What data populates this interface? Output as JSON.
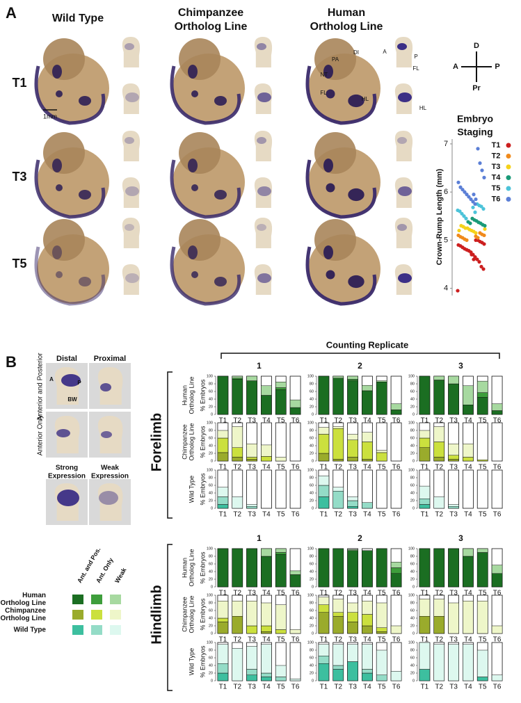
{
  "panel_a": {
    "label": "A",
    "columns": [
      [
        "Wild Type"
      ],
      [
        "Chimpanzee",
        "Ortholog Line"
      ],
      [
        "Human",
        "Ortholog Line"
      ]
    ],
    "rows": [
      "T1",
      "T3",
      "T5"
    ],
    "scale_bar": "1mm",
    "annotations": [
      "PA",
      "DI",
      "NT",
      "FL",
      "HL",
      "A",
      "P",
      "FL",
      "HL"
    ],
    "compass": [
      "D",
      "A",
      "P",
      "Pr"
    ]
  },
  "chart_data": {
    "type": "scatter",
    "title": [
      "Embryo",
      "Staging"
    ],
    "ylabel": "Crown-Rump Length (mm)",
    "ylim": [
      3.85,
      7.1
    ],
    "yticks": [
      4,
      5,
      6,
      7
    ],
    "series": [
      {
        "name": "T1",
        "color": "#cc1f1f",
        "values": [
          3.95,
          4.4,
          4.45,
          4.55,
          4.6,
          4.65,
          4.7,
          4.75,
          4.78,
          4.8,
          4.82,
          4.85,
          4.88,
          4.9,
          4.92,
          4.95,
          4.97,
          5.0,
          5.0,
          4.6,
          4.7
        ]
      },
      {
        "name": "T2",
        "color": "#f08a1c",
        "values": [
          5.0,
          5.02,
          5.05,
          5.07,
          5.1,
          5.1,
          5.12,
          5.15,
          5.05,
          5.08
        ]
      },
      {
        "name": "T3",
        "color": "#f5d21a",
        "values": [
          5.15,
          5.18,
          5.2,
          5.22,
          5.25,
          5.25,
          5.28,
          5.3,
          5.2,
          5.23
        ]
      },
      {
        "name": "T4",
        "color": "#1a9a78",
        "values": [
          5.3,
          5.32,
          5.35,
          5.37,
          5.4,
          5.42,
          5.45,
          5.35,
          5.38
        ]
      },
      {
        "name": "T5",
        "color": "#4cc3d9",
        "values": [
          5.45,
          5.5,
          5.55,
          5.6,
          5.62,
          5.65,
          5.7,
          5.72,
          5.75,
          5.58,
          5.68
        ]
      },
      {
        "name": "T6",
        "color": "#5b7fd6",
        "values": [
          5.75,
          5.8,
          5.85,
          5.9,
          5.95,
          6.0,
          6.05,
          6.1,
          6.2,
          6.3,
          6.45,
          6.6,
          6.9,
          5.85,
          5.95
        ]
      }
    ]
  },
  "panel_b": {
    "label": "B",
    "examples": {
      "columns": [
        "Distal",
        "Proximal"
      ],
      "rows": [
        "Anterior and Posterior",
        "Anterior Only"
      ],
      "markers": [
        "A",
        "P",
        "BW"
      ],
      "expression": [
        [
          "Strong",
          "Expression"
        ],
        [
          "Weak",
          "Expression"
        ]
      ]
    },
    "legend": {
      "columns": [
        "Ant. and Pos.",
        "Ant. Only",
        "Weak"
      ],
      "rows": [
        [
          "Human",
          "Ortholog Line"
        ],
        [
          "Chimpanzee",
          "Ortholog Line"
        ],
        [
          "Wild Type"
        ]
      ]
    },
    "counts": {
      "type": "stacked_bar",
      "title": "Counting Replicate",
      "replicates": [
        "1",
        "2",
        "3"
      ],
      "categories": [
        "T1",
        "T2",
        "T3",
        "T4",
        "T5",
        "T6"
      ],
      "ylabel": "% Embryos",
      "ylim": [
        0,
        100
      ],
      "yticks": [
        0,
        20,
        40,
        60,
        80,
        100
      ],
      "lines": [
        {
          "name": [
            "Human",
            "Ortholog Line"
          ],
          "colors": [
            "#1b6e22",
            "#3e9e3c",
            "#a7d9a0"
          ]
        },
        {
          "name": [
            "Chimpanzee",
            "Ortholog Line"
          ],
          "colors": [
            "#9aab2c",
            "#cbe03e",
            "#eef6c9"
          ]
        },
        {
          "name": [
            "Wild Type"
          ],
          "colors": [
            "#3dbf9f",
            "#94dcc7",
            "#ddf8ef"
          ]
        }
      ],
      "blocks": [
        {
          "name": "Forelimb",
          "data": [
            [
              [
                [
                  100,
                  92,
                  88,
                  50,
                  65,
                  18
                ],
                [
                  0,
                  3,
                  0,
                  0,
                  5,
                  0
                ],
                [
                  0,
                  5,
                  12,
                  25,
                  15,
                  20
                ]
              ],
              [
                [
                  100,
                  95,
                  88,
                  62,
                  85,
                  12
                ],
                [
                  0,
                  0,
                  4,
                  0,
                  0,
                  0
                ],
                [
                  0,
                  5,
                  8,
                  14,
                  3,
                  16
                ]
              ],
              [
                [
                  100,
                  90,
                  80,
                  25,
                  45,
                  10
                ],
                [
                  0,
                  0,
                  0,
                  0,
                  12,
                  0
                ],
                [
                  0,
                  10,
                  20,
                  50,
                  30,
                  18
                ]
              ]
            ],
            [
              [
                [
                  22,
                  10,
                  5,
                  0,
                  0,
                  0
                ],
                [
                  38,
                  25,
                  5,
                  12,
                  0,
                  0
                ],
                [
                  20,
                  55,
                  35,
                  30,
                  10,
                  0
                ]
              ],
              [
                [
                  20,
                  5,
                  10,
                  5,
                  0,
                  0
                ],
                [
                  50,
                  80,
                  45,
                  45,
                  22,
                  0
                ],
                [
                  18,
                  5,
                  15,
                  25,
                  6,
                  0
                ]
              ],
              [
                [
                  35,
                  10,
                  5,
                  0,
                  0,
                  0
                ],
                [
                  25,
                  40,
                  10,
                  10,
                  3,
                  0
                ],
                [
                  20,
                  40,
                  30,
                  35,
                  0,
                  0
                ]
              ]
            ],
            [
              [
                [
                  10,
                  0,
                  0,
                  0,
                  0,
                  0
                ],
                [
                  20,
                  0,
                  5,
                  0,
                  0,
                  0
                ],
                [
                  25,
                  30,
                  5,
                  0,
                  0,
                  0
                ]
              ],
              [
                [
                  30,
                  0,
                  5,
                  0,
                  0,
                  0
                ],
                [
                  30,
                  45,
                  15,
                  15,
                  0,
                  0
                ],
                [
                  25,
                  10,
                  10,
                  0,
                  0,
                  0
                ]
              ],
              [
                [
                  10,
                  0,
                  0,
                  0,
                  0,
                  0
                ],
                [
                  15,
                  0,
                  5,
                  0,
                  0,
                  0
                ],
                [
                  33,
                  30,
                  5,
                  0,
                  0,
                  0
                ]
              ]
            ]
          ]
        },
        {
          "name": "Hindlimb",
          "data": [
            [
              [
                [
                  100,
                  100,
                  100,
                  80,
                  85,
                  32
                ],
                [
                  0,
                  0,
                  0,
                  0,
                  5,
                  0
                ],
                [
                  0,
                  0,
                  0,
                  20,
                  10,
                  10
                ]
              ],
              [
                [
                  100,
                  100,
                  95,
                  95,
                  100,
                  35
                ],
                [
                  0,
                  0,
                  0,
                  0,
                  0,
                  15
                ],
                [
                  0,
                  0,
                  3,
                  0,
                  0,
                  15
                ]
              ],
              [
                [
                  100,
                  100,
                  100,
                  80,
                  90,
                  35
                ],
                [
                  0,
                  0,
                  0,
                  0,
                  0,
                  0
                ],
                [
                  0,
                  0,
                  0,
                  20,
                  10,
                  22
                ]
              ]
            ],
            [
              [
                [
                  30,
                  45,
                  0,
                  5,
                  0,
                  0
                ],
                [
                  10,
                  0,
                  20,
                  15,
                  10,
                  0
                ],
                [
                  45,
                  40,
                  65,
                  60,
                  65,
                  10
                ]
              ],
              [
                [
                  55,
                  45,
                  30,
                  20,
                  5,
                  0
                ],
                [
                  20,
                  10,
                  25,
                  30,
                  10,
                  0
                ],
                [
                  20,
                  35,
                  25,
                  35,
                  65,
                  20
                ]
              ],
              [
                [
                  45,
                  45,
                  0,
                  0,
                  0,
                  0
                ],
                [
                  0,
                  0,
                  0,
                  0,
                  0,
                  0
                ],
                [
                  45,
                  45,
                  80,
                  85,
                  85,
                  20
                ]
              ]
            ],
            [
              [
                [
                  20,
                  0,
                  15,
                  10,
                  0,
                  0
                ],
                [
                  25,
                  0,
                  15,
                  10,
                  10,
                  0
                ],
                [
                  50,
                  85,
                  60,
                  75,
                  30,
                  5
                ]
              ],
              [
                [
                  45,
                  30,
                  50,
                  20,
                  0,
                  0
                ],
                [
                  20,
                  10,
                  0,
                  10,
                  15,
                  0
                ],
                [
                  30,
                  55,
                  45,
                  65,
                  65,
                  25
                ]
              ],
              [
                [
                  30,
                  0,
                  0,
                  0,
                  10,
                  0
                ],
                [
                  0,
                  0,
                  0,
                  0,
                  0,
                  0
                ],
                [
                  70,
                  95,
                  95,
                  95,
                  70,
                  15
                ]
              ]
            ]
          ]
        }
      ]
    }
  }
}
